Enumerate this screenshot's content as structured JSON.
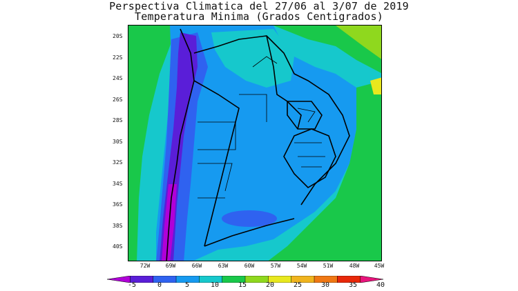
{
  "header": {
    "title": "Perspectiva Climatica del 27/06 al 3/07 de 2019",
    "subtitle": "Temperatura Minima (Grados Centigrados)"
  },
  "map": {
    "lat_labels": [
      "20S",
      "22S",
      "24S",
      "26S",
      "28S",
      "30S",
      "32S",
      "34S",
      "36S",
      "38S",
      "40S"
    ],
    "lon_labels": [
      "72W",
      "69W",
      "66W",
      "63W",
      "60W",
      "57W",
      "54W",
      "51W",
      "48W",
      "45W"
    ]
  },
  "colorbar": {
    "labels": [
      "-5",
      "0",
      "5",
      "10",
      "15",
      "20",
      "25",
      "30",
      "35",
      "40"
    ],
    "colors": [
      "#b000d8",
      "#5a1ed8",
      "#2f62f0",
      "#169af0",
      "#16c8cc",
      "#19c84a",
      "#8fd81e",
      "#e8e81e",
      "#f0b41e",
      "#f07814",
      "#e8280a",
      "#e8147c"
    ]
  }
}
